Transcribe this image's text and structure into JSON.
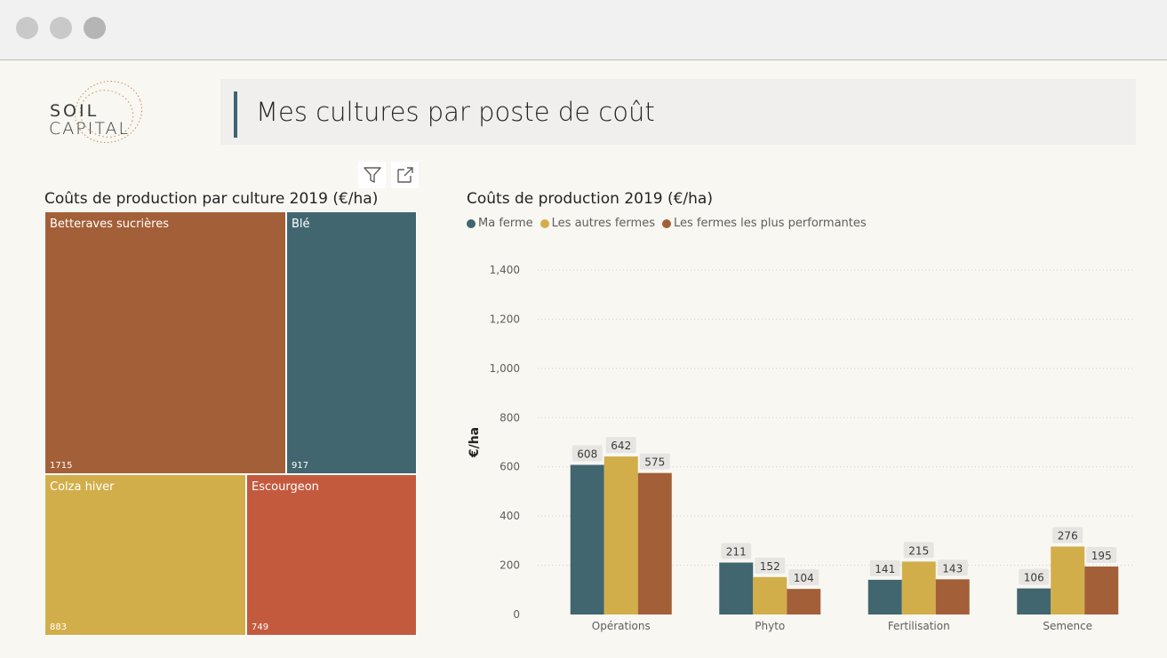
{
  "window": {
    "controls": [
      "close",
      "minimize",
      "maximize"
    ]
  },
  "logo": {
    "line1": "SOIL",
    "line2": "CAPITAL"
  },
  "page": {
    "title": "Mes cultures par poste de coût"
  },
  "toolbar": {
    "filter_icon": "filter-icon",
    "focus_icon": "focus-mode-icon"
  },
  "treemap": {
    "title": "Coûts de production par culture 2019 (€/ha)",
    "tiles": [
      {
        "label": "Betteraves sucrières",
        "value": "1715",
        "color": "#a35f38"
      },
      {
        "label": "Blé",
        "value": "917",
        "color": "#41666f"
      },
      {
        "label": "Colza hiver",
        "value": "883",
        "color": "#d2ae4a"
      },
      {
        "label": "Escourgeon",
        "value": "749",
        "color": "#c35a3e"
      }
    ]
  },
  "bar_chart": {
    "title": "Coûts de production 2019 (€/ha)",
    "legend": [
      {
        "name": "Ma ferme",
        "color": "#41666f"
      },
      {
        "name": "Les autres fermes",
        "color": "#d2ae4a"
      },
      {
        "name": "Les fermes les plus performantes",
        "color": "#a35f38"
      }
    ]
  },
  "chart_data": {
    "type": "bar",
    "title": "Coûts de production 2019 (€/ha)",
    "ylabel": "€/ha",
    "xlabel": "",
    "ylim": [
      0,
      1400
    ],
    "yticks": [
      "0",
      "200",
      "400",
      "600",
      "800",
      "1,000",
      "1,200",
      "1,400"
    ],
    "ytick_values": [
      0,
      200,
      400,
      600,
      800,
      1000,
      1200,
      1400
    ],
    "grid": true,
    "legend_position": "top-left",
    "categories": [
      "Opérations",
      "Phyto",
      "Fertilisation",
      "Semence"
    ],
    "series": [
      {
        "name": "Ma ferme",
        "color": "#41666f",
        "values": [
          608,
          211,
          141,
          106
        ]
      },
      {
        "name": "Les autres fermes",
        "color": "#d2ae4a",
        "values": [
          642,
          152,
          215,
          276
        ]
      },
      {
        "name": "Les fermes les plus performantes",
        "color": "#a35f38",
        "values": [
          575,
          104,
          143,
          195
        ]
      }
    ]
  }
}
